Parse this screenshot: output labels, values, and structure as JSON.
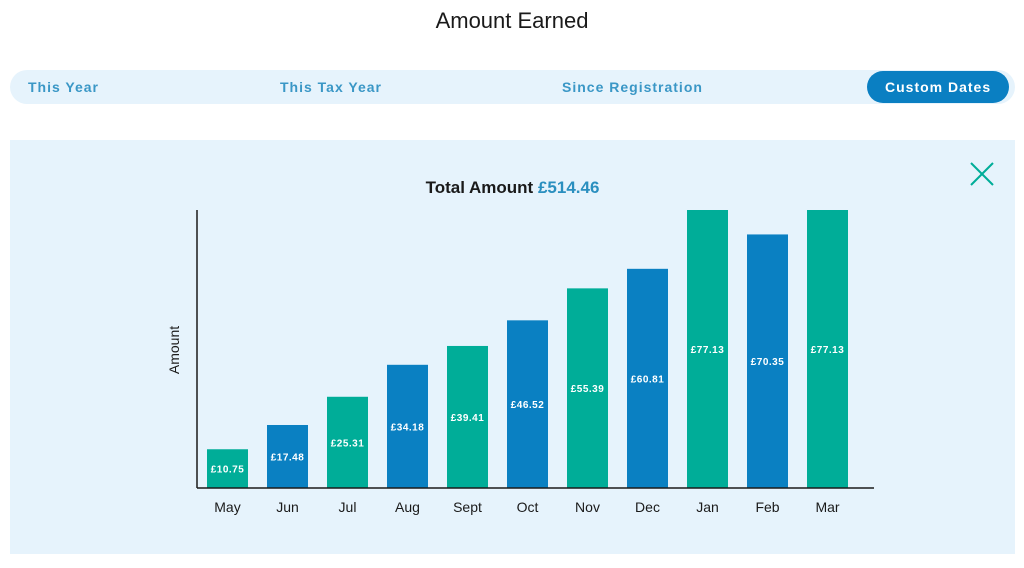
{
  "header": {
    "title": "Amount Earned"
  },
  "tabs": [
    {
      "label": "This Year",
      "active": false
    },
    {
      "label": "This Tax Year",
      "active": false
    },
    {
      "label": "Since Registration",
      "active": false
    },
    {
      "label": "Custom Dates",
      "active": true
    }
  ],
  "panel": {
    "close_icon": "close-icon",
    "total_label": "Total Amount",
    "total_value": "£514.46"
  },
  "colors": {
    "teal": "#00ad98",
    "blue": "#0a80c2",
    "accent": "#0a7fc2",
    "panel_bg": "#e6f3fc"
  },
  "chart_data": {
    "type": "bar",
    "title": "Total Amount £514.46",
    "xlabel": "",
    "ylabel": "Amount",
    "categories": [
      "May",
      "Jun",
      "Jul",
      "Aug",
      "Sept",
      "Oct",
      "Nov",
      "Dec",
      "Jan",
      "Feb",
      "Mar"
    ],
    "values": [
      10.75,
      17.48,
      25.31,
      34.18,
      39.41,
      46.52,
      55.39,
      60.81,
      77.13,
      70.35,
      77.13
    ],
    "labels": [
      "£10.75",
      "£17.48",
      "£25.31",
      "£34.18",
      "£39.41",
      "£46.52",
      "£55.39",
      "£60.81",
      "£77.13",
      "£70.35",
      "£77.13"
    ],
    "bar_colors": [
      "#00ad98",
      "#0a80c2",
      "#00ad98",
      "#0a80c2",
      "#00ad98",
      "#0a80c2",
      "#00ad98",
      "#0a80c2",
      "#00ad98",
      "#0a80c2",
      "#00ad98"
    ],
    "ylim": [
      0,
      77.13
    ],
    "grid": false,
    "legend": "none"
  }
}
